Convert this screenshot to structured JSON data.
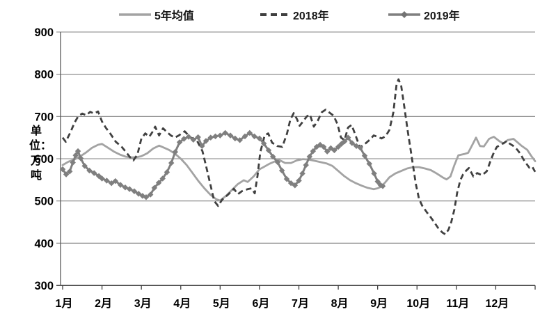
{
  "chart_data": {
    "type": "line",
    "title": "",
    "xlabel": "",
    "ylabel": "单位：万吨",
    "ylim": [
      300,
      900
    ],
    "ytick_step": 100,
    "yticks": [
      300,
      400,
      500,
      600,
      700,
      800,
      900
    ],
    "grid": true,
    "legend_position": "top",
    "background": "#ffffff",
    "colors": {
      "grid": "#808080",
      "axis": "#595959",
      "tick": "#404040",
      "text": "#000000"
    },
    "x_axis": {
      "labels": [
        "1月",
        "2月",
        "3月",
        "4月",
        "5月",
        "6月",
        "7月",
        "8月",
        "9月",
        "10月",
        "11月",
        "12月"
      ],
      "range_months": [
        0,
        12
      ],
      "tick_count": 13
    },
    "series": [
      {
        "name": "5年均值",
        "color": "#a3a3a3",
        "line": "solid",
        "width": 2.8,
        "marker": "none",
        "points": [
          [
            0,
            585
          ],
          [
            0.15,
            593
          ],
          [
            0.3,
            598
          ],
          [
            0.45,
            606
          ],
          [
            0.6,
            615
          ],
          [
            0.75,
            626
          ],
          [
            0.9,
            633
          ],
          [
            1.0,
            635
          ],
          [
            1.15,
            626
          ],
          [
            1.3,
            617
          ],
          [
            1.45,
            610
          ],
          [
            1.6,
            605
          ],
          [
            1.75,
            603
          ],
          [
            1.9,
            604
          ],
          [
            2.0,
            606
          ],
          [
            2.15,
            613
          ],
          [
            2.3,
            624
          ],
          [
            2.45,
            631
          ],
          [
            2.55,
            627
          ],
          [
            2.7,
            621
          ],
          [
            2.85,
            612
          ],
          [
            3.0,
            600
          ],
          [
            3.15,
            585
          ],
          [
            3.3,
            566
          ],
          [
            3.45,
            547
          ],
          [
            3.6,
            530
          ],
          [
            3.75,
            515
          ],
          [
            3.9,
            504
          ],
          [
            4.0,
            501
          ],
          [
            4.15,
            512
          ],
          [
            4.3,
            526
          ],
          [
            4.45,
            540
          ],
          [
            4.6,
            549
          ],
          [
            4.7,
            545
          ],
          [
            4.85,
            558
          ],
          [
            5.0,
            575
          ],
          [
            5.1,
            580
          ],
          [
            5.25,
            588
          ],
          [
            5.4,
            594
          ],
          [
            5.5,
            597
          ],
          [
            5.65,
            590
          ],
          [
            5.8,
            590
          ],
          [
            5.95,
            596
          ],
          [
            6.1,
            599
          ],
          [
            6.25,
            598
          ],
          [
            6.4,
            595
          ],
          [
            6.55,
            592
          ],
          [
            6.7,
            589
          ],
          [
            6.85,
            583
          ],
          [
            7.0,
            571
          ],
          [
            7.15,
            559
          ],
          [
            7.3,
            549
          ],
          [
            7.45,
            542
          ],
          [
            7.6,
            536
          ],
          [
            7.75,
            531
          ],
          [
            7.9,
            528
          ],
          [
            8.0,
            530
          ],
          [
            8.1,
            534
          ],
          [
            8.2,
            545
          ],
          [
            8.3,
            556
          ],
          [
            8.45,
            565
          ],
          [
            8.6,
            571
          ],
          [
            8.75,
            577
          ],
          [
            8.9,
            580
          ],
          [
            9.05,
            580
          ],
          [
            9.2,
            577
          ],
          [
            9.35,
            573
          ],
          [
            9.5,
            565
          ],
          [
            9.65,
            556
          ],
          [
            9.75,
            551
          ],
          [
            9.85,
            558
          ],
          [
            9.95,
            585
          ],
          [
            10.05,
            608
          ],
          [
            10.2,
            611
          ],
          [
            10.3,
            614
          ],
          [
            10.4,
            632
          ],
          [
            10.5,
            650
          ],
          [
            10.6,
            630
          ],
          [
            10.7,
            629
          ],
          [
            10.83,
            647
          ],
          [
            10.95,
            652
          ],
          [
            11.1,
            641
          ],
          [
            11.2,
            636
          ],
          [
            11.3,
            644
          ],
          [
            11.45,
            647
          ],
          [
            11.55,
            639
          ],
          [
            11.65,
            631
          ],
          [
            11.8,
            621
          ],
          [
            11.9,
            607
          ],
          [
            12,
            594
          ]
        ]
      },
      {
        "name": "2018年",
        "color": "#404040",
        "line": "dashed",
        "width": 2.8,
        "marker": "none",
        "points": [
          [
            0,
            650
          ],
          [
            0.08,
            640
          ],
          [
            0.2,
            663
          ],
          [
            0.3,
            685
          ],
          [
            0.4,
            701
          ],
          [
            0.5,
            707
          ],
          [
            0.6,
            703
          ],
          [
            0.7,
            711
          ],
          [
            0.8,
            707
          ],
          [
            0.9,
            712
          ],
          [
            1.0,
            688
          ],
          [
            1.1,
            673
          ],
          [
            1.2,
            661
          ],
          [
            1.35,
            640
          ],
          [
            1.5,
            628
          ],
          [
            1.6,
            617
          ],
          [
            1.7,
            605
          ],
          [
            1.8,
            596
          ],
          [
            1.9,
            610
          ],
          [
            2.0,
            648
          ],
          [
            2.1,
            660
          ],
          [
            2.2,
            652
          ],
          [
            2.3,
            666
          ],
          [
            2.35,
            676
          ],
          [
            2.45,
            655
          ],
          [
            2.55,
            672
          ],
          [
            2.65,
            663
          ],
          [
            2.75,
            655
          ],
          [
            2.85,
            650
          ],
          [
            2.95,
            655
          ],
          [
            3.1,
            665
          ],
          [
            3.25,
            650
          ],
          [
            3.4,
            645
          ],
          [
            3.55,
            618
          ],
          [
            3.65,
            580
          ],
          [
            3.75,
            540
          ],
          [
            3.85,
            500
          ],
          [
            3.95,
            488
          ],
          [
            4.05,
            503
          ],
          [
            4.2,
            515
          ],
          [
            4.35,
            529
          ],
          [
            4.45,
            516
          ],
          [
            4.55,
            523
          ],
          [
            4.7,
            528
          ],
          [
            4.8,
            530
          ],
          [
            4.88,
            518
          ],
          [
            4.95,
            560
          ],
          [
            5.02,
            615
          ],
          [
            5.13,
            655
          ],
          [
            5.22,
            660
          ],
          [
            5.32,
            638
          ],
          [
            5.45,
            630
          ],
          [
            5.58,
            628
          ],
          [
            5.7,
            660
          ],
          [
            5.78,
            692
          ],
          [
            5.87,
            708
          ],
          [
            5.95,
            694
          ],
          [
            6.02,
            678
          ],
          [
            6.12,
            690
          ],
          [
            6.2,
            700
          ],
          [
            6.28,
            705
          ],
          [
            6.38,
            676
          ],
          [
            6.48,
            690
          ],
          [
            6.58,
            710
          ],
          [
            6.68,
            716
          ],
          [
            6.78,
            709
          ],
          [
            6.88,
            702
          ],
          [
            6.98,
            682
          ],
          [
            7.07,
            650
          ],
          [
            7.16,
            644
          ],
          [
            7.25,
            674
          ],
          [
            7.34,
            680
          ],
          [
            7.44,
            655
          ],
          [
            7.55,
            627
          ],
          [
            7.65,
            633
          ],
          [
            7.8,
            645
          ],
          [
            7.9,
            655
          ],
          [
            8.0,
            652
          ],
          [
            8.1,
            648
          ],
          [
            8.2,
            653
          ],
          [
            8.3,
            668
          ],
          [
            8.4,
            710
          ],
          [
            8.48,
            775
          ],
          [
            8.53,
            788
          ],
          [
            8.6,
            772
          ],
          [
            8.68,
            722
          ],
          [
            8.76,
            668
          ],
          [
            8.84,
            620
          ],
          [
            8.9,
            583
          ],
          [
            8.97,
            540
          ],
          [
            9.05,
            505
          ],
          [
            9.13,
            489
          ],
          [
            9.25,
            473
          ],
          [
            9.35,
            461
          ],
          [
            9.45,
            448
          ],
          [
            9.55,
            434
          ],
          [
            9.65,
            425
          ],
          [
            9.72,
            421
          ],
          [
            9.8,
            432
          ],
          [
            9.87,
            450
          ],
          [
            9.95,
            480
          ],
          [
            10.02,
            520
          ],
          [
            10.1,
            549
          ],
          [
            10.17,
            563
          ],
          [
            10.25,
            572
          ],
          [
            10.32,
            578
          ],
          [
            10.43,
            558
          ],
          [
            10.53,
            566
          ],
          [
            10.65,
            561
          ],
          [
            10.77,
            570
          ],
          [
            10.88,
            598
          ],
          [
            10.96,
            617
          ],
          [
            11.03,
            628
          ],
          [
            11.12,
            633
          ],
          [
            11.2,
            637
          ],
          [
            11.28,
            642
          ],
          [
            11.35,
            636
          ],
          [
            11.45,
            630
          ],
          [
            11.55,
            621
          ],
          [
            11.63,
            611
          ],
          [
            11.7,
            599
          ],
          [
            11.78,
            588
          ],
          [
            11.85,
            579
          ],
          [
            11.92,
            582
          ],
          [
            12,
            569
          ]
        ]
      },
      {
        "name": "2019年",
        "color": "#7f7f7f",
        "line": "solid",
        "width": 3,
        "marker": "diamond",
        "points": [
          [
            0,
            575
          ],
          [
            0.09,
            563
          ],
          [
            0.18,
            570
          ],
          [
            0.26,
            591
          ],
          [
            0.33,
            608
          ],
          [
            0.39,
            618
          ],
          [
            0.46,
            601
          ],
          [
            0.56,
            583
          ],
          [
            0.68,
            572
          ],
          [
            0.8,
            566
          ],
          [
            0.92,
            559
          ],
          [
            1.0,
            553
          ],
          [
            1.12,
            548
          ],
          [
            1.24,
            542
          ],
          [
            1.34,
            547
          ],
          [
            1.47,
            538
          ],
          [
            1.59,
            532
          ],
          [
            1.7,
            528
          ],
          [
            1.82,
            523
          ],
          [
            1.93,
            517
          ],
          [
            2.03,
            512
          ],
          [
            2.12,
            509
          ],
          [
            2.23,
            515
          ],
          [
            2.33,
            531
          ],
          [
            2.44,
            543
          ],
          [
            2.54,
            553
          ],
          [
            2.65,
            568
          ],
          [
            2.76,
            590
          ],
          [
            2.86,
            616
          ],
          [
            2.97,
            639
          ],
          [
            3.08,
            647
          ],
          [
            3.2,
            652
          ],
          [
            3.32,
            645
          ],
          [
            3.44,
            651
          ],
          [
            3.54,
            630
          ],
          [
            3.64,
            642
          ],
          [
            3.76,
            650
          ],
          [
            3.88,
            653
          ],
          [
            4.0,
            655
          ],
          [
            4.13,
            661
          ],
          [
            4.26,
            655
          ],
          [
            4.38,
            648
          ],
          [
            4.5,
            644
          ],
          [
            4.63,
            653
          ],
          [
            4.75,
            661
          ],
          [
            4.87,
            653
          ],
          [
            5.0,
            648
          ],
          [
            5.11,
            636
          ],
          [
            5.23,
            620
          ],
          [
            5.34,
            605
          ],
          [
            5.46,
            592
          ],
          [
            5.57,
            572
          ],
          [
            5.69,
            552
          ],
          [
            5.8,
            542
          ],
          [
            5.9,
            537
          ],
          [
            6.0,
            548
          ],
          [
            6.09,
            565
          ],
          [
            6.18,
            585
          ],
          [
            6.27,
            605
          ],
          [
            6.36,
            618
          ],
          [
            6.45,
            628
          ],
          [
            6.54,
            633
          ],
          [
            6.63,
            628
          ],
          [
            6.72,
            617
          ],
          [
            6.81,
            625
          ],
          [
            6.9,
            620
          ],
          [
            7.0,
            628
          ],
          [
            7.08,
            635
          ],
          [
            7.16,
            641
          ],
          [
            7.25,
            650
          ],
          [
            7.35,
            637
          ],
          [
            7.46,
            630
          ],
          [
            7.56,
            626
          ],
          [
            7.67,
            607
          ],
          [
            7.79,
            588
          ],
          [
            7.91,
            565
          ],
          [
            8.0,
            546
          ],
          [
            8.07,
            538
          ],
          [
            8.13,
            535
          ]
        ]
      }
    ]
  }
}
